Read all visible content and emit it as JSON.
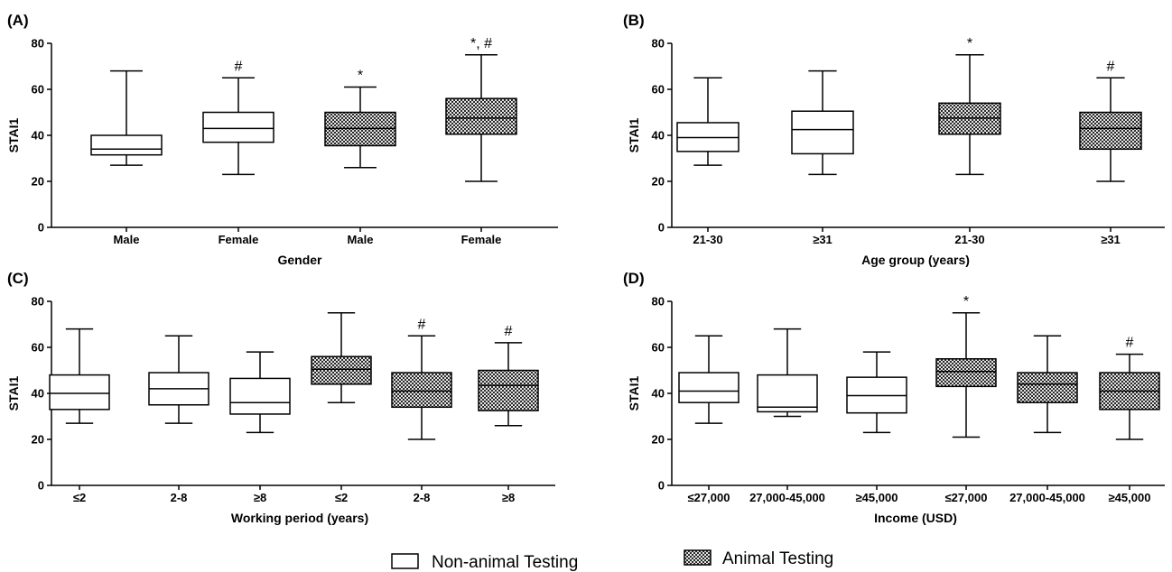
{
  "legend": {
    "items": [
      {
        "label": "Non-animal Testing",
        "pattern": "none"
      },
      {
        "label": "Animal Testing",
        "pattern": "checker"
      }
    ],
    "placement": "bottom-center"
  },
  "chart_data": [
    {
      "panel": "(A)",
      "type": "boxplot",
      "xlabel": "Gender",
      "ylabel": "STAI1",
      "ylim": [
        0,
        80
      ],
      "yticks": [
        0,
        20,
        40,
        60,
        80
      ],
      "categories": [
        "Male",
        "Female",
        "Male",
        "Female"
      ],
      "boxes": [
        {
          "min": 27,
          "q1": 31.5,
          "median": 34,
          "q3": 40,
          "max": 68,
          "filled": false,
          "sig": ""
        },
        {
          "min": 23,
          "q1": 37,
          "median": 43,
          "q3": 50,
          "max": 65,
          "filled": false,
          "sig": "#"
        },
        {
          "min": 26,
          "q1": 35.5,
          "median": 43,
          "q3": 50,
          "max": 61,
          "filled": true,
          "sig": "*"
        },
        {
          "min": 20,
          "q1": 40.5,
          "median": 47.5,
          "q3": 56,
          "max": 75,
          "filled": true,
          "sig": "*, #"
        }
      ]
    },
    {
      "panel": "(B)",
      "type": "boxplot",
      "xlabel": "Age group (years)",
      "ylabel": "STAI1",
      "ylim": [
        0,
        80
      ],
      "yticks": [
        0,
        20,
        40,
        60,
        80
      ],
      "categories": [
        "21-30",
        "≥31",
        "21-30",
        "≥31"
      ],
      "boxes": [
        {
          "min": 27,
          "q1": 33,
          "median": 39,
          "q3": 45.5,
          "max": 65,
          "filled": false,
          "sig": ""
        },
        {
          "min": 23,
          "q1": 32,
          "median": 42.5,
          "q3": 50.5,
          "max": 68,
          "filled": false,
          "sig": ""
        },
        {
          "min": 23,
          "q1": 40.5,
          "median": 47.5,
          "q3": 54,
          "max": 75,
          "filled": true,
          "sig": "*"
        },
        {
          "min": 20,
          "q1": 34,
          "median": 43,
          "q3": 50,
          "max": 65,
          "filled": true,
          "sig": "#"
        }
      ]
    },
    {
      "panel": "(C)",
      "type": "boxplot",
      "xlabel": "Working period (years)",
      "ylabel": "STAI1",
      "ylim": [
        0,
        80
      ],
      "yticks": [
        0,
        20,
        40,
        60,
        80
      ],
      "categories": [
        "≤2",
        "2-8",
        "≥8",
        "≤2",
        "2-8",
        "≥8"
      ],
      "boxes": [
        {
          "min": 27,
          "q1": 33,
          "median": 40,
          "q3": 48,
          "max": 68,
          "filled": false,
          "sig": ""
        },
        {
          "min": 27,
          "q1": 35,
          "median": 42,
          "q3": 49,
          "max": 65,
          "filled": false,
          "sig": ""
        },
        {
          "min": 23,
          "q1": 31,
          "median": 36,
          "q3": 46.5,
          "max": 58,
          "filled": false,
          "sig": ""
        },
        {
          "min": 36,
          "q1": 44,
          "median": 50.5,
          "q3": 56,
          "max": 75,
          "filled": true,
          "sig": ""
        },
        {
          "min": 20,
          "q1": 34,
          "median": 41,
          "q3": 49,
          "max": 65,
          "filled": true,
          "sig": "#"
        },
        {
          "min": 26,
          "q1": 32.5,
          "median": 43.5,
          "q3": 50,
          "max": 62,
          "filled": true,
          "sig": "#"
        }
      ]
    },
    {
      "panel": "(D)",
      "type": "boxplot",
      "xlabel": "Income (USD)",
      "ylabel": "STAI1",
      "ylim": [
        0,
        80
      ],
      "yticks": [
        0,
        20,
        40,
        60,
        80
      ],
      "categories": [
        "≤27,000",
        "27,000-45,000",
        "≥45,000",
        "≤27,000",
        "27,000-45,000",
        "≥45,000"
      ],
      "boxes": [
        {
          "min": 27,
          "q1": 36,
          "median": 41,
          "q3": 49,
          "max": 65,
          "filled": false,
          "sig": ""
        },
        {
          "min": 30,
          "q1": 32,
          "median": 34,
          "q3": 48,
          "max": 68,
          "filled": false,
          "sig": ""
        },
        {
          "min": 23,
          "q1": 31.5,
          "median": 39,
          "q3": 47,
          "max": 58,
          "filled": false,
          "sig": ""
        },
        {
          "min": 21,
          "q1": 43,
          "median": 49.5,
          "q3": 55,
          "max": 75,
          "filled": true,
          "sig": "*"
        },
        {
          "min": 23,
          "q1": 36,
          "median": 44,
          "q3": 49,
          "max": 65,
          "filled": true,
          "sig": ""
        },
        {
          "min": 20,
          "q1": 33,
          "median": 41,
          "q3": 49,
          "max": 57,
          "filled": true,
          "sig": "#"
        }
      ]
    }
  ]
}
